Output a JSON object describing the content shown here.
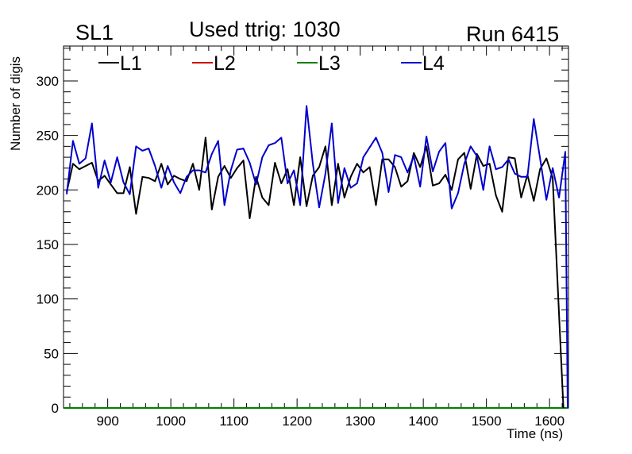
{
  "header": {
    "left_label": "SL1",
    "title": "Used ttrig: 1030",
    "right_label": "Run 6415"
  },
  "chart_data": {
    "type": "line",
    "xlabel": "Time (ns)",
    "ylabel": "Number of digis",
    "xlim": [
      830,
      1630
    ],
    "ylim": [
      0,
      332
    ],
    "x_ticks": [
      900,
      1000,
      1100,
      1200,
      1300,
      1400,
      1500,
      1600
    ],
    "y_ticks": [
      0,
      50,
      100,
      150,
      200,
      250,
      300
    ],
    "legend_placement": "top",
    "grid": false,
    "x": [
      835,
      845,
      855,
      865,
      875,
      885,
      895,
      905,
      915,
      925,
      935,
      945,
      955,
      965,
      975,
      985,
      995,
      1005,
      1015,
      1025,
      1035,
      1045,
      1055,
      1065,
      1075,
      1085,
      1095,
      1105,
      1115,
      1125,
      1135,
      1145,
      1155,
      1165,
      1175,
      1185,
      1195,
      1205,
      1215,
      1225,
      1235,
      1245,
      1255,
      1265,
      1275,
      1285,
      1295,
      1305,
      1315,
      1325,
      1335,
      1345,
      1355,
      1365,
      1375,
      1385,
      1395,
      1405,
      1415,
      1425,
      1435,
      1445,
      1455,
      1465,
      1475,
      1485,
      1495,
      1505,
      1515,
      1525,
      1535,
      1545,
      1555,
      1565,
      1575,
      1585,
      1595,
      1605,
      1615,
      1625
    ],
    "series": [
      {
        "name": "L1",
        "color": "#000000",
        "values": [
          198,
          224,
          219,
          222,
          225,
          208,
          213,
          205,
          197,
          197,
          221,
          178,
          212,
          211,
          208,
          224,
          205,
          213,
          210,
          208,
          224,
          200,
          248,
          182,
          212,
          222,
          211,
          220,
          227,
          174,
          212,
          193,
          186,
          225,
          206,
          219,
          186,
          230,
          185,
          213,
          221,
          240,
          186,
          224,
          193,
          212,
          224,
          216,
          221,
          186,
          228,
          228,
          221,
          203,
          208,
          234,
          221,
          240,
          204,
          206,
          214,
          200,
          228,
          234,
          201,
          233,
          222,
          224,
          195,
          180,
          230,
          229,
          193,
          214,
          190,
          219,
          229,
          211,
          0,
          0
        ]
      },
      {
        "name": "L2",
        "color": "#cc0000",
        "values": [
          0,
          0,
          0,
          0,
          0,
          0,
          0,
          0,
          0,
          0,
          0,
          0,
          0,
          0,
          0,
          0,
          0,
          0,
          0,
          0,
          0,
          0,
          0,
          0,
          0,
          0,
          0,
          0,
          0,
          0,
          0,
          0,
          0,
          0,
          0,
          0,
          0,
          0,
          0,
          0,
          0,
          0,
          0,
          0,
          0,
          0,
          0,
          0,
          0,
          0,
          0,
          0,
          0,
          0,
          0,
          0,
          0,
          0,
          0,
          0,
          0,
          0,
          0,
          0,
          0,
          0,
          0,
          0,
          0,
          0,
          0,
          0,
          0,
          0,
          0,
          0,
          0,
          0,
          0,
          0
        ]
      },
      {
        "name": "L3",
        "color": "#008000",
        "values": [
          0,
          0,
          0,
          0,
          0,
          0,
          0,
          0,
          0,
          0,
          0,
          0,
          0,
          0,
          0,
          0,
          0,
          0,
          0,
          0,
          0,
          0,
          0,
          0,
          0,
          0,
          0,
          0,
          0,
          0,
          0,
          0,
          0,
          0,
          0,
          0,
          0,
          0,
          0,
          0,
          0,
          0,
          0,
          0,
          0,
          0,
          0,
          0,
          0,
          0,
          0,
          0,
          0,
          0,
          0,
          0,
          0,
          0,
          0,
          0,
          0,
          0,
          0,
          0,
          0,
          0,
          0,
          0,
          0,
          0,
          0,
          0,
          0,
          0,
          0,
          0,
          0,
          0,
          0,
          0
        ]
      },
      {
        "name": "L4",
        "color": "#0000cc",
        "values": [
          196,
          245,
          224,
          229,
          261,
          202,
          227,
          207,
          230,
          207,
          196,
          240,
          236,
          238,
          222,
          202,
          222,
          207,
          197,
          212,
          218,
          218,
          216,
          233,
          245,
          186,
          218,
          237,
          238,
          225,
          205,
          230,
          241,
          243,
          248,
          206,
          218,
          186,
          277,
          224,
          184,
          215,
          261,
          188,
          220,
          202,
          206,
          230,
          239,
          248,
          234,
          198,
          232,
          230,
          216,
          231,
          203,
          249,
          217,
          235,
          243,
          183,
          197,
          224,
          240,
          231,
          200,
          240,
          219,
          221,
          228,
          215,
          212,
          212,
          265,
          229,
          191,
          220,
          193,
          235
        ]
      }
    ],
    "tail": {
      "note_x": [
        1625,
        1630
      ],
      "L4_drop_to": 0
    }
  }
}
